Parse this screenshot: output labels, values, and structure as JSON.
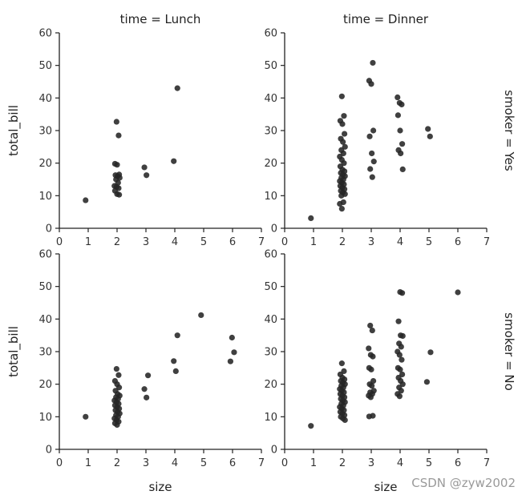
{
  "chart_data": [
    {
      "type": "scatter",
      "title": "time = Lunch",
      "row_label": "",
      "xlabel": "",
      "ylabel": "total_bill",
      "xlim": [
        0,
        7
      ],
      "ylim": [
        0,
        60
      ],
      "xticks": [
        "0",
        "1",
        "2",
        "3",
        "4",
        "5",
        "6",
        "7"
      ],
      "yticks": [
        "0",
        "10",
        "20",
        "30",
        "40",
        "50",
        "60"
      ],
      "points": [
        [
          1,
          8.6
        ],
        [
          2,
          32.7
        ],
        [
          2,
          28.5
        ],
        [
          2,
          19.8
        ],
        [
          2,
          19.5
        ],
        [
          2,
          16.5
        ],
        [
          2,
          16.3
        ],
        [
          2,
          16.0
        ],
        [
          2,
          15.5
        ],
        [
          2,
          15.0
        ],
        [
          2,
          14.0
        ],
        [
          2,
          13.0
        ],
        [
          2,
          12.7
        ],
        [
          2,
          12.3
        ],
        [
          2,
          11.5
        ],
        [
          2,
          10.5
        ],
        [
          2,
          10.3
        ],
        [
          3,
          18.7
        ],
        [
          3,
          16.3
        ],
        [
          4,
          43.0
        ],
        [
          4,
          20.6
        ]
      ]
    },
    {
      "type": "scatter",
      "title": "time = Dinner",
      "row_label": "smoker = Yes",
      "xlabel": "",
      "ylabel": "",
      "xlim": [
        0,
        7
      ],
      "ylim": [
        0,
        60
      ],
      "xticks": [
        "0",
        "1",
        "2",
        "3",
        "4",
        "5",
        "6",
        "7"
      ],
      "yticks": [
        "0",
        "10",
        "20",
        "30",
        "40",
        "50",
        "60"
      ],
      "points": [
        [
          1,
          3.1
        ],
        [
          2,
          40.5
        ],
        [
          2,
          34.5
        ],
        [
          2,
          33.0
        ],
        [
          2,
          32.0
        ],
        [
          2,
          29.0
        ],
        [
          2,
          27.5
        ],
        [
          2,
          26.5
        ],
        [
          2,
          25.0
        ],
        [
          2,
          24.0
        ],
        [
          2,
          23.0
        ],
        [
          2,
          22.0
        ],
        [
          2,
          21.0
        ],
        [
          2,
          20.0
        ],
        [
          2,
          19.0
        ],
        [
          2,
          18.0
        ],
        [
          2,
          17.5
        ],
        [
          2,
          17.0
        ],
        [
          2,
          16.5
        ],
        [
          2,
          16.0
        ],
        [
          2,
          15.5
        ],
        [
          2,
          15.0
        ],
        [
          2,
          14.5
        ],
        [
          2,
          14.0
        ],
        [
          2,
          13.5
        ],
        [
          2,
          13.0
        ],
        [
          2,
          12.5
        ],
        [
          2,
          12.0
        ],
        [
          2,
          11.5
        ],
        [
          2,
          11.0
        ],
        [
          2,
          10.5
        ],
        [
          2,
          10.0
        ],
        [
          2,
          8.0
        ],
        [
          2,
          7.5
        ],
        [
          2,
          6.0
        ],
        [
          3,
          50.8
        ],
        [
          3,
          45.3
        ],
        [
          3,
          44.3
        ],
        [
          3,
          30.0
        ],
        [
          3,
          28.2
        ],
        [
          3,
          23.0
        ],
        [
          3,
          20.5
        ],
        [
          3,
          18.2
        ],
        [
          3,
          15.7
        ],
        [
          4,
          40.2
        ],
        [
          4,
          38.5
        ],
        [
          4,
          38.0
        ],
        [
          4,
          34.7
        ],
        [
          4,
          30.0
        ],
        [
          4,
          25.9
        ],
        [
          4,
          24.0
        ],
        [
          4,
          23.0
        ],
        [
          4,
          18.1
        ],
        [
          5,
          30.5
        ],
        [
          5,
          28.2
        ]
      ]
    },
    {
      "type": "scatter",
      "title": "",
      "row_label": "",
      "xlabel": "size",
      "ylabel": "total_bill",
      "xlim": [
        0,
        7
      ],
      "ylim": [
        0,
        60
      ],
      "xticks": [
        "0",
        "1",
        "2",
        "3",
        "4",
        "5",
        "6",
        "7"
      ],
      "yticks": [
        "0",
        "10",
        "20",
        "30",
        "40",
        "50",
        "60"
      ],
      "points": [
        [
          1,
          10.0
        ],
        [
          2,
          24.7
        ],
        [
          2,
          22.8
        ],
        [
          2,
          21.0
        ],
        [
          2,
          20.0
        ],
        [
          2,
          19.0
        ],
        [
          2,
          18.0
        ],
        [
          2,
          17.0
        ],
        [
          2,
          16.5
        ],
        [
          2,
          16.0
        ],
        [
          2,
          15.5
        ],
        [
          2,
          15.0
        ],
        [
          2,
          14.5
        ],
        [
          2,
          14.0
        ],
        [
          2,
          13.5
        ],
        [
          2,
          13.0
        ],
        [
          2,
          12.5
        ],
        [
          2,
          12.0
        ],
        [
          2,
          11.5
        ],
        [
          2,
          11.0
        ],
        [
          2,
          10.5
        ],
        [
          2,
          10.0
        ],
        [
          2,
          9.5
        ],
        [
          2,
          9.0
        ],
        [
          2,
          8.5
        ],
        [
          2,
          8.0
        ],
        [
          2,
          7.5
        ],
        [
          3,
          22.7
        ],
        [
          3,
          18.5
        ],
        [
          3,
          15.9
        ],
        [
          4,
          35.0
        ],
        [
          4,
          27.1
        ],
        [
          4,
          24.0
        ],
        [
          5,
          41.2
        ],
        [
          6,
          34.3
        ],
        [
          6,
          29.8
        ],
        [
          6,
          27.0
        ]
      ]
    },
    {
      "type": "scatter",
      "title": "",
      "row_label": "smoker = No",
      "xlabel": "size",
      "ylabel": "",
      "xlim": [
        0,
        7
      ],
      "ylim": [
        0,
        60
      ],
      "xticks": [
        "0",
        "1",
        "2",
        "3",
        "4",
        "5",
        "6",
        "7"
      ],
      "yticks": [
        "0",
        "10",
        "20",
        "30",
        "40",
        "50",
        "60"
      ],
      "points": [
        [
          1,
          7.2
        ],
        [
          2,
          26.4
        ],
        [
          2,
          24.0
        ],
        [
          2,
          23.0
        ],
        [
          2,
          22.0
        ],
        [
          2,
          21.5
        ],
        [
          2,
          21.0
        ],
        [
          2,
          20.5
        ],
        [
          2,
          20.0
        ],
        [
          2,
          19.5
        ],
        [
          2,
          19.0
        ],
        [
          2,
          18.5
        ],
        [
          2,
          18.0
        ],
        [
          2,
          17.5
        ],
        [
          2,
          17.0
        ],
        [
          2,
          16.5
        ],
        [
          2,
          16.0
        ],
        [
          2,
          15.5
        ],
        [
          2,
          15.0
        ],
        [
          2,
          14.5
        ],
        [
          2,
          14.0
        ],
        [
          2,
          13.5
        ],
        [
          2,
          13.0
        ],
        [
          2,
          12.5
        ],
        [
          2,
          12.0
        ],
        [
          2,
          11.5
        ],
        [
          2,
          11.0
        ],
        [
          2,
          10.5
        ],
        [
          2,
          10.0
        ],
        [
          2,
          9.5
        ],
        [
          2,
          9.0
        ],
        [
          3,
          38.0
        ],
        [
          3,
          36.5
        ],
        [
          3,
          31.0
        ],
        [
          3,
          29.0
        ],
        [
          3,
          28.5
        ],
        [
          3,
          25.0
        ],
        [
          3,
          24.5
        ],
        [
          3,
          21.0
        ],
        [
          3,
          20.0
        ],
        [
          3,
          19.5
        ],
        [
          3,
          18.0
        ],
        [
          3,
          17.5
        ],
        [
          3,
          17.0
        ],
        [
          3,
          16.5
        ],
        [
          3,
          16.0
        ],
        [
          3,
          10.3
        ],
        [
          3,
          10.1
        ],
        [
          4,
          48.3
        ],
        [
          4,
          48.0
        ],
        [
          4,
          39.3
        ],
        [
          4,
          35.0
        ],
        [
          4,
          34.8
        ],
        [
          4,
          32.5
        ],
        [
          4,
          31.5
        ],
        [
          4,
          30.0
        ],
        [
          4,
          29.0
        ],
        [
          4,
          27.5
        ],
        [
          4,
          25.0
        ],
        [
          4,
          24.5
        ],
        [
          4,
          23.0
        ],
        [
          4,
          22.0
        ],
        [
          4,
          21.0
        ],
        [
          4,
          20.0
        ],
        [
          4,
          19.0
        ],
        [
          4,
          18.0
        ],
        [
          4,
          17.0
        ],
        [
          4,
          16.3
        ],
        [
          5,
          29.8
        ],
        [
          5,
          20.7
        ],
        [
          6,
          48.2
        ]
      ]
    }
  ],
  "watermark": "CSDN @zyw2002",
  "colors": {
    "point": "#262626",
    "axis": "#222222"
  }
}
